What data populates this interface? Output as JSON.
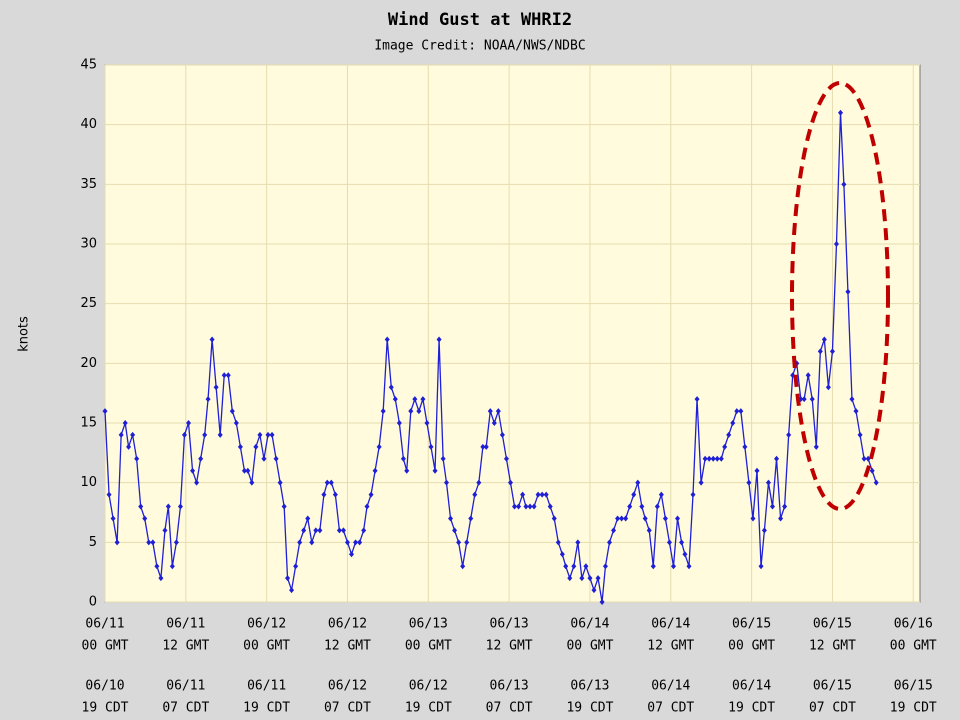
{
  "chart_data": {
    "type": "line",
    "title": "Wind Gust at WHRI2",
    "subtitle": "Image Credit: NOAA/NWS/NDBC",
    "y_label": "knots",
    "xlim": [
      0,
      121
    ],
    "ylim": [
      0,
      45
    ],
    "yticks": [
      0,
      5,
      10,
      15,
      20,
      25,
      30,
      35,
      40,
      45
    ],
    "grid": true,
    "xticks": [
      {
        "value": 0,
        "label": [
          "06/11",
          "00 GMT"
        ]
      },
      {
        "value": 12,
        "label": [
          "06/11",
          "12 GMT"
        ]
      },
      {
        "value": 24,
        "label": [
          "06/12",
          "00 GMT"
        ]
      },
      {
        "value": 36,
        "label": [
          "06/12",
          "12 GMT"
        ]
      },
      {
        "value": 48,
        "label": [
          "06/13",
          "00 GMT"
        ]
      },
      {
        "value": 60,
        "label": [
          "06/13",
          "12 GMT"
        ]
      },
      {
        "value": 72,
        "label": [
          "06/14",
          "00 GMT"
        ]
      },
      {
        "value": 84,
        "label": [
          "06/14",
          "12 GMT"
        ]
      },
      {
        "value": 96,
        "label": [
          "06/15",
          "00 GMT"
        ]
      },
      {
        "value": 108,
        "label": [
          "06/15",
          "12 GMT"
        ]
      },
      {
        "value": 120,
        "label": [
          "06/16",
          "00 GMT"
        ]
      }
    ],
    "xticks_cdt": [
      {
        "value": 0,
        "label": [
          "06/10",
          "19 CDT"
        ]
      },
      {
        "value": 12,
        "label": [
          "06/11",
          "07 CDT"
        ]
      },
      {
        "value": 24,
        "label": [
          "06/11",
          "19 CDT"
        ]
      },
      {
        "value": 36,
        "label": [
          "06/12",
          "07 CDT"
        ]
      },
      {
        "value": 48,
        "label": [
          "06/12",
          "19 CDT"
        ]
      },
      {
        "value": 60,
        "label": [
          "06/13",
          "07 CDT"
        ]
      },
      {
        "value": 72,
        "label": [
          "06/13",
          "19 CDT"
        ]
      },
      {
        "value": 84,
        "label": [
          "06/14",
          "07 CDT"
        ]
      },
      {
        "value": 96,
        "label": [
          "06/14",
          "19 CDT"
        ]
      },
      {
        "value": 108,
        "label": [
          "06/15",
          "07 CDT"
        ]
      },
      {
        "value": 120,
        "label": [
          "06/15",
          "19 CDT"
        ]
      }
    ],
    "x": [
      0,
      0.6,
      1.2,
      1.8,
      2.4,
      3,
      3.5,
      4.1,
      4.7,
      5.3,
      5.9,
      6.5,
      7.1,
      7.7,
      8.3,
      8.9,
      9.4,
      10,
      10.6,
      11.2,
      11.8,
      12.4,
      13,
      13.6,
      14.2,
      14.8,
      15.3,
      15.9,
      16.5,
      17.1,
      17.7,
      18.3,
      18.9,
      19.5,
      20.1,
      20.7,
      21.2,
      21.8,
      22.4,
      23,
      23.6,
      24.2,
      24.8,
      25.4,
      26,
      26.6,
      27.1,
      27.7,
      28.3,
      28.9,
      29.5,
      30.1,
      30.7,
      31.3,
      31.9,
      32.5,
      33,
      33.6,
      34.2,
      34.8,
      35.4,
      36,
      36.6,
      37.2,
      37.8,
      38.4,
      38.9,
      39.5,
      40.1,
      40.7,
      41.3,
      41.9,
      42.5,
      43.1,
      43.7,
      44.3,
      44.8,
      45.4,
      46,
      46.6,
      47.2,
      47.8,
      48.4,
      49,
      49.6,
      50.2,
      50.7,
      51.3,
      51.9,
      52.5,
      53.1,
      53.7,
      54.3,
      54.9,
      55.5,
      56.1,
      56.6,
      57.2,
      57.8,
      58.4,
      59,
      59.6,
      60.2,
      60.8,
      61.4,
      62,
      62.5,
      63.1,
      63.7,
      64.3,
      64.9,
      65.5,
      66.1,
      66.7,
      67.3,
      67.9,
      68.4,
      69,
      69.6,
      70.2,
      70.8,
      71.4,
      72,
      72.6,
      73.2,
      73.8,
      74.3,
      74.9,
      75.5,
      76.1,
      76.7,
      77.3,
      77.9,
      78.5,
      79.1,
      79.7,
      80.2,
      80.8,
      81.4,
      82,
      82.6,
      83.2,
      83.8,
      84.4,
      85,
      85.6,
      86.1,
      86.7,
      87.3,
      87.9,
      88.5,
      89.1,
      89.7,
      90.3,
      90.9,
      91.5,
      92,
      92.6,
      93.2,
      93.8,
      94.4,
      95,
      95.6,
      96.2,
      96.8,
      97.4,
      97.9,
      98.5,
      99.1,
      99.7,
      100.3,
      100.9,
      101.5,
      102.1,
      102.7,
      103.3,
      103.8,
      104.4,
      105,
      105.6,
      106.2,
      106.8,
      107.4,
      108,
      108.6,
      109.2,
      109.7,
      110.3,
      110.9,
      111.5,
      112.1,
      112.7,
      113.3,
      113.9,
      114.5
    ],
    "series": [
      {
        "color": "#1f1fd6",
        "values": [
          16,
          9,
          7,
          5,
          14,
          15,
          13,
          14,
          12,
          8,
          7,
          5,
          5,
          3,
          2,
          6,
          8,
          3,
          5,
          8,
          14,
          15,
          11,
          10,
          12,
          14,
          17,
          22,
          18,
          14,
          19,
          19,
          16,
          15,
          13,
          11,
          11,
          10,
          13,
          14,
          12,
          14,
          14,
          12,
          10,
          8,
          2,
          1,
          3,
          5,
          6,
          7,
          5,
          6,
          6,
          9,
          10,
          10,
          9,
          6,
          6,
          5,
          4,
          5,
          5,
          6,
          8,
          9,
          11,
          13,
          16,
          22,
          18,
          17,
          15,
          12,
          11,
          16,
          17,
          16,
          17,
          15,
          13,
          11,
          22,
          12,
          10,
          7,
          6,
          5,
          3,
          5,
          7,
          9,
          10,
          13,
          13,
          16,
          15,
          16,
          14,
          12,
          10,
          8,
          8,
          9,
          8,
          8,
          8,
          9,
          9,
          9,
          8,
          7,
          5,
          4,
          3,
          2,
          3,
          5,
          2,
          3,
          2,
          1,
          2,
          0,
          3,
          5,
          6,
          7,
          7,
          7,
          8,
          9,
          10,
          8,
          7,
          6,
          3,
          8,
          9,
          7,
          5,
          3,
          7,
          5,
          4,
          3,
          9,
          17,
          10,
          12,
          12,
          12,
          12,
          12,
          13,
          14,
          15,
          16,
          16,
          13,
          10,
          7,
          11,
          3,
          6,
          10,
          8,
          12,
          7,
          8,
          14,
          19,
          20,
          17,
          17,
          19,
          17,
          13,
          21,
          22,
          18,
          21,
          30,
          41,
          35,
          26,
          17,
          16,
          14,
          12,
          12,
          11,
          10
        ]
      }
    ]
  }
}
